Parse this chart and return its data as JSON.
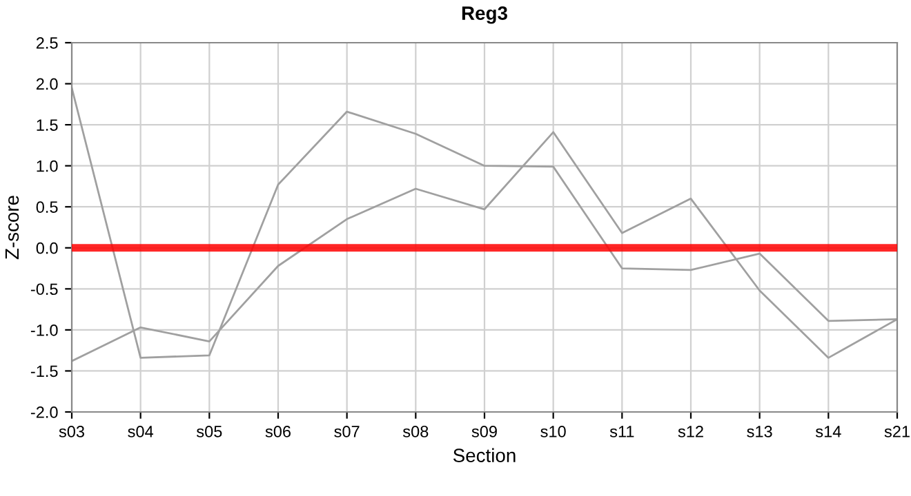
{
  "chart_data": {
    "type": "line",
    "title": "Reg3",
    "xlabel": "Section",
    "ylabel": "Z-score",
    "categories": [
      "s03",
      "s04",
      "s05",
      "s06",
      "s07",
      "s08",
      "s09",
      "s10",
      "s11",
      "s12",
      "s13",
      "s14",
      "s21"
    ],
    "series": [
      {
        "color": "#a0a0a0",
        "values": [
          1.95,
          -1.34,
          -1.31,
          0.77,
          1.66,
          1.39,
          1.0,
          0.99,
          -0.25,
          -0.27,
          -0.07,
          -0.89,
          -0.87
        ]
      },
      {
        "color": "#a0a0a0",
        "values": [
          -1.38,
          -0.97,
          -1.14,
          -0.22,
          0.35,
          0.72,
          0.47,
          1.41,
          0.18,
          0.6,
          -0.52,
          -1.34,
          -0.87
        ]
      }
    ],
    "ylim": [
      -2.0,
      2.5
    ],
    "yticks": [
      {
        "value": -2.0,
        "label": "-2.0"
      },
      {
        "value": -1.5,
        "label": "-1.5"
      },
      {
        "value": -1.0,
        "label": "-1.0"
      },
      {
        "value": -0.5,
        "label": "-0.5"
      },
      {
        "value": 0.0,
        "label": "0.0"
      },
      {
        "value": 0.5,
        "label": "0.5"
      },
      {
        "value": 1.0,
        "label": "1.0"
      },
      {
        "value": 1.5,
        "label": "1.5"
      },
      {
        "value": 2.0,
        "label": "2.0"
      },
      {
        "value": 2.5,
        "label": "2.5"
      }
    ],
    "ref_lines": [
      {
        "axis": "y",
        "value": 0,
        "color": "#ff0000"
      }
    ],
    "grid": true,
    "legend": false,
    "marker": "none",
    "line_style": "solid"
  }
}
